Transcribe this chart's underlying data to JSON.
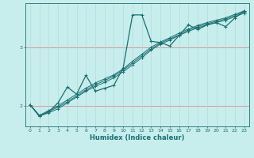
{
  "xlabel": "Humidex (Indice chaleur)",
  "bg_color": "#c8eded",
  "line_color": "#1a7070",
  "grid_h_color": "#d89898",
  "grid_v_color": "#aad8d8",
  "xlim": [
    -0.5,
    23.5
  ],
  "ylim": [
    1.65,
    3.75
  ],
  "yticks": [
    2,
    3
  ],
  "xticks": [
    0,
    1,
    2,
    3,
    4,
    5,
    6,
    7,
    8,
    9,
    10,
    11,
    12,
    13,
    14,
    15,
    16,
    17,
    18,
    19,
    20,
    21,
    22,
    23
  ],
  "lines": [
    [
      2.02,
      1.82,
      1.9,
      2.05,
      2.32,
      2.2,
      2.52,
      2.25,
      2.3,
      2.35,
      2.65,
      3.55,
      3.55,
      3.1,
      3.08,
      3.02,
      3.2,
      3.38,
      3.3,
      3.38,
      3.42,
      3.35,
      3.5,
      3.62
    ],
    [
      2.02,
      1.83,
      1.88,
      1.95,
      2.05,
      2.15,
      2.25,
      2.33,
      2.4,
      2.48,
      2.58,
      2.7,
      2.82,
      2.95,
      3.05,
      3.12,
      3.2,
      3.27,
      3.33,
      3.38,
      3.42,
      3.46,
      3.52,
      3.58
    ],
    [
      2.02,
      1.83,
      1.9,
      1.98,
      2.07,
      2.17,
      2.27,
      2.36,
      2.43,
      2.51,
      2.61,
      2.73,
      2.85,
      2.97,
      3.07,
      3.14,
      3.21,
      3.29,
      3.35,
      3.4,
      3.44,
      3.48,
      3.54,
      3.6
    ],
    [
      2.02,
      1.84,
      1.92,
      2.0,
      2.1,
      2.2,
      2.3,
      2.39,
      2.46,
      2.53,
      2.63,
      2.76,
      2.88,
      3.0,
      3.09,
      3.16,
      3.24,
      3.31,
      3.37,
      3.42,
      3.46,
      3.5,
      3.56,
      3.62
    ]
  ]
}
